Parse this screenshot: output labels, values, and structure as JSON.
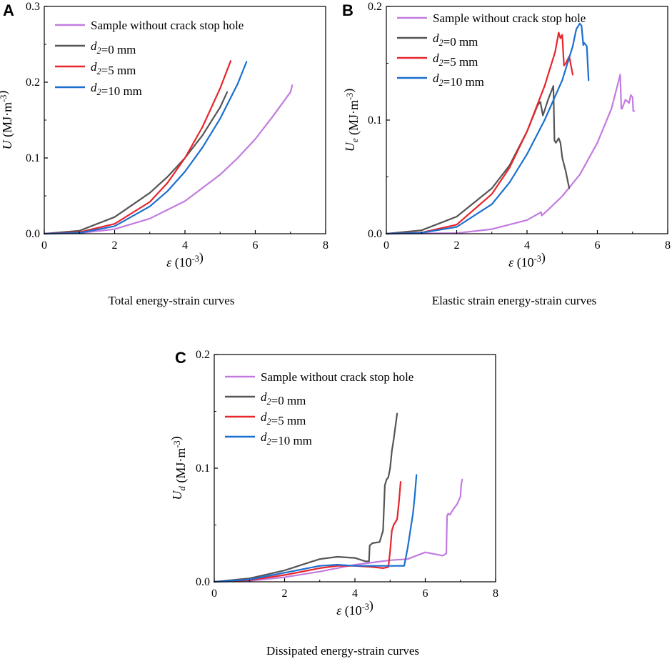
{
  "figure": {
    "colors": {
      "sample": "#c27be0",
      "d0": "#555555",
      "d5": "#e8252b",
      "d10": "#1a6fcf",
      "axis": "#000000"
    }
  },
  "chart_data": [
    {
      "panel": "A",
      "type": "line",
      "caption": "Total energy-strain curves",
      "xlabel": "ε (10⁻³)",
      "ylabel": "U (MJ·m⁻³)",
      "xlim": [
        0,
        8
      ],
      "ylim": [
        0,
        0.3
      ],
      "xticks": [
        "0",
        "2",
        "4",
        "6",
        "8"
      ],
      "yticks": [
        "0.0",
        "0.1",
        "0.2",
        "0.3"
      ],
      "legend": [
        "Sample without crack stop hole",
        "d₂=0 mm",
        "d₂=5 mm",
        "d₂=10 mm"
      ],
      "series": [
        {
          "name": "Sample without crack stop hole",
          "color_key": "sample",
          "x": [
            0,
            1,
            2,
            3,
            4,
            5,
            5.5,
            6,
            6.5,
            7,
            7.05
          ],
          "y": [
            0,
            0.0008,
            0.006,
            0.02,
            0.043,
            0.078,
            0.1,
            0.125,
            0.155,
            0.187,
            0.196
          ]
        },
        {
          "name": "d₂=0 mm",
          "color_key": "d0",
          "x": [
            0,
            1,
            2,
            3,
            3.5,
            4,
            4.5,
            5,
            5.2
          ],
          "y": [
            0,
            0.004,
            0.022,
            0.054,
            0.075,
            0.1,
            0.13,
            0.167,
            0.187
          ]
        },
        {
          "name": "d₂=5 mm",
          "color_key": "d5",
          "x": [
            0,
            1,
            2,
            3,
            3.5,
            4,
            4.5,
            5,
            5.3
          ],
          "y": [
            0,
            0.002,
            0.013,
            0.042,
            0.067,
            0.1,
            0.141,
            0.192,
            0.228
          ]
        },
        {
          "name": "d₂=10 mm",
          "color_key": "d10",
          "x": [
            0,
            1,
            2,
            3,
            3.5,
            4,
            4.5,
            5,
            5.5,
            5.75
          ],
          "y": [
            0,
            0.001,
            0.01,
            0.036,
            0.056,
            0.082,
            0.114,
            0.152,
            0.198,
            0.227
          ]
        }
      ]
    },
    {
      "panel": "B",
      "type": "line",
      "caption": "Elastic strain energy-strain curves",
      "xlabel": "ε (10⁻³)",
      "ylabel": "Uₑ (MJ·m⁻³)",
      "xlim": [
        0,
        8
      ],
      "ylim": [
        0,
        0.2
      ],
      "xticks": [
        "0",
        "2",
        "4",
        "6",
        "8"
      ],
      "yticks": [
        "0.0",
        "0.1",
        "0.2"
      ],
      "legend": [
        "Sample without crack stop hole",
        "d₂=0 mm",
        "d₂=5 mm",
        "d₂=10 mm"
      ],
      "series": [
        {
          "name": "Sample without crack stop hole",
          "color_key": "sample",
          "x": [
            0,
            2,
            3,
            4,
            4.4,
            4.42,
            4.6,
            5,
            5.5,
            6,
            6.4,
            6.65,
            6.68,
            6.7,
            6.8,
            6.9,
            6.95,
            7.0,
            7.02,
            7.05
          ],
          "y": [
            0,
            0.0005,
            0.004,
            0.012,
            0.019,
            0.016,
            0.021,
            0.033,
            0.052,
            0.08,
            0.11,
            0.14,
            0.11,
            0.11,
            0.118,
            0.115,
            0.122,
            0.12,
            0.108,
            0.108
          ]
        },
        {
          "name": "d₂=0 mm",
          "color_key": "d0",
          "x": [
            0,
            1,
            2,
            3,
            3.5,
            4,
            4.3,
            4.38,
            4.45,
            4.6,
            4.75,
            4.78,
            4.82,
            4.9,
            4.95,
            5.0,
            5.1,
            5.2
          ],
          "y": [
            0,
            0.003,
            0.015,
            0.04,
            0.06,
            0.09,
            0.113,
            0.116,
            0.104,
            0.118,
            0.13,
            0.082,
            0.08,
            0.084,
            0.08,
            0.067,
            0.055,
            0.04
          ]
        },
        {
          "name": "d₂=5 mm",
          "color_key": "d5",
          "x": [
            0,
            1,
            2,
            3,
            3.5,
            4,
            4.5,
            4.8,
            4.9,
            4.95,
            5.0,
            5.05,
            5.1,
            5.2,
            5.3
          ],
          "y": [
            0,
            0.001,
            0.008,
            0.035,
            0.058,
            0.09,
            0.13,
            0.16,
            0.177,
            0.172,
            0.175,
            0.148,
            0.15,
            0.156,
            0.14
          ]
        },
        {
          "name": "d₂=10 mm",
          "color_key": "d10",
          "x": [
            0,
            1,
            2,
            3,
            3.5,
            4,
            4.5,
            5,
            5.3,
            5.4,
            5.5,
            5.55,
            5.6,
            5.62,
            5.7,
            5.75
          ],
          "y": [
            0,
            0.0008,
            0.006,
            0.026,
            0.045,
            0.07,
            0.1,
            0.135,
            0.165,
            0.18,
            0.185,
            0.183,
            0.166,
            0.168,
            0.165,
            0.135
          ]
        }
      ]
    },
    {
      "panel": "C",
      "type": "line",
      "caption": "Dissipated energy-strain curves",
      "xlabel": "ε (10⁻³)",
      "ylabel": "U_d (MJ·m⁻³)",
      "xlim": [
        0,
        8
      ],
      "ylim": [
        0,
        0.2
      ],
      "xticks": [
        "0",
        "2",
        "4",
        "6",
        "8"
      ],
      "yticks": [
        "0.0",
        "0.1",
        "0.2"
      ],
      "legend": [
        "Sample without crack stop hole",
        "d₂=0 mm",
        "d₂=5 mm",
        "d₂=10 mm"
      ],
      "series": [
        {
          "name": "Sample without crack stop hole",
          "color_key": "sample",
          "x": [
            0,
            1,
            2,
            3,
            4,
            4.5,
            5,
            5.5,
            6.0,
            6.5,
            6.6,
            6.62,
            6.65,
            6.7,
            6.8,
            6.9,
            7.0,
            7.02,
            7.05
          ],
          "y": [
            0,
            0.0008,
            0.004,
            0.009,
            0.015,
            0.017,
            0.019,
            0.02,
            0.026,
            0.023,
            0.025,
            0.058,
            0.06,
            0.059,
            0.064,
            0.068,
            0.075,
            0.085,
            0.09
          ]
        },
        {
          "name": "d₂=0 mm",
          "color_key": "d0",
          "x": [
            0,
            1,
            2,
            2.5,
            3,
            3.5,
            4,
            4.3,
            4.4,
            4.42,
            4.5,
            4.7,
            4.8,
            4.85,
            4.9,
            4.95,
            5.0,
            5.05,
            5.1,
            5.2
          ],
          "y": [
            0,
            0.003,
            0.01,
            0.015,
            0.02,
            0.022,
            0.021,
            0.018,
            0.018,
            0.032,
            0.034,
            0.035,
            0.045,
            0.085,
            0.09,
            0.092,
            0.1,
            0.115,
            0.125,
            0.148
          ]
        },
        {
          "name": "d₂=5 mm",
          "color_key": "d5",
          "x": [
            0,
            1,
            2,
            3,
            3.5,
            4,
            4.5,
            4.8,
            4.95,
            5.0,
            5.05,
            5.1,
            5.2,
            5.25,
            5.3
          ],
          "y": [
            0,
            0.0015,
            0.006,
            0.012,
            0.014,
            0.014,
            0.013,
            0.012,
            0.013,
            0.027,
            0.045,
            0.05,
            0.055,
            0.07,
            0.088
          ]
        },
        {
          "name": "d₂=10 mm",
          "color_key": "d10",
          "x": [
            0,
            1,
            2,
            3,
            3.5,
            4,
            4.5,
            5,
            5.4,
            5.5,
            5.6,
            5.65,
            5.7,
            5.75
          ],
          "y": [
            0,
            0.002,
            0.008,
            0.014,
            0.015,
            0.014,
            0.014,
            0.014,
            0.014,
            0.03,
            0.05,
            0.06,
            0.075,
            0.094
          ]
        }
      ]
    }
  ]
}
